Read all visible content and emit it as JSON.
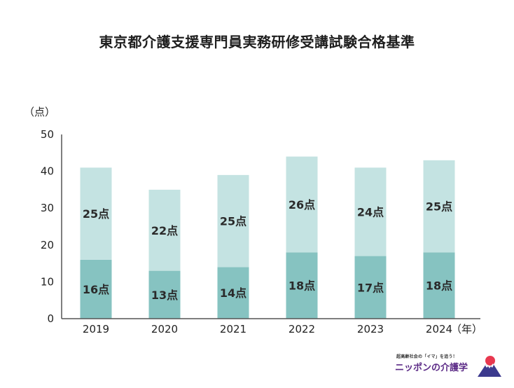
{
  "chart_data": {
    "type": "bar",
    "title": "東京都介護支援専門員実務研修受講試験合格基準",
    "ylabel": "（点）",
    "xlabel": "（年）",
    "ylim": [
      0,
      50
    ],
    "yticks": [
      0,
      10,
      20,
      30,
      40,
      50
    ],
    "categories": [
      "2019",
      "2020",
      "2021",
      "2022",
      "2023",
      "2024"
    ],
    "series": [
      {
        "values": [
          16,
          13,
          14,
          18,
          17,
          18
        ],
        "labels": [
          "16点",
          "13点",
          "14点",
          "18点",
          "17点",
          "18点"
        ],
        "color": "#86c3c1"
      },
      {
        "values": [
          25,
          22,
          25,
          26,
          24,
          25
        ],
        "labels": [
          "25点",
          "22点",
          "25点",
          "26点",
          "24点",
          "25点"
        ],
        "color": "#c4e3e2"
      }
    ],
    "stacked": true,
    "grid": false,
    "axis_color": "#555555"
  },
  "brand": {
    "tagline": "超高齢社会の「イマ」を追う！",
    "name": "ニッポンの介護学",
    "mark_colors": {
      "sun": "#e8384f",
      "mountain": "#3c3a8e"
    }
  }
}
